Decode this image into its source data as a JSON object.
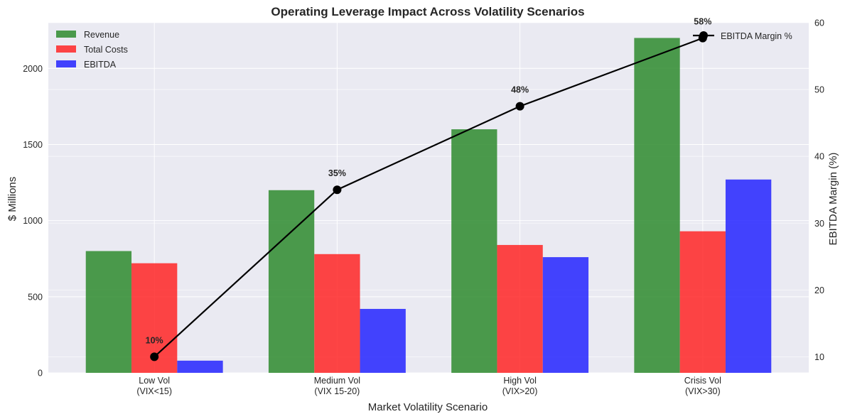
{
  "chart_data": {
    "type": "bar",
    "title": "Operating Leverage Impact Across Volatility Scenarios",
    "xlabel": "Market Volatility Scenario",
    "ylabel": "$ Millions",
    "y2label": "EBITDA Margin (%)",
    "categories": [
      [
        "Low Vol",
        "(VIX<15)"
      ],
      [
        "Medium Vol",
        "(VIX 15-20)"
      ],
      [
        "High Vol",
        "(VIX>20)"
      ],
      [
        "Crisis Vol",
        "(VIX>30)"
      ]
    ],
    "ylim": [
      0,
      2300
    ],
    "yticks": [
      0,
      500,
      1000,
      1500,
      2000
    ],
    "y2lim": [
      7.6,
      60
    ],
    "y2ticks": [
      10,
      20,
      30,
      40,
      50,
      60
    ],
    "grid": true,
    "series": [
      {
        "name": "Revenue",
        "color": "#2e8b2e",
        "values": [
          800,
          1200,
          1600,
          2200
        ]
      },
      {
        "name": "Total Costs",
        "color": "#ff2626",
        "values": [
          720,
          780,
          840,
          930
        ]
      },
      {
        "name": "EBITDA",
        "color": "#2424ff",
        "values": [
          80,
          420,
          760,
          1270
        ]
      }
    ],
    "line_series": {
      "name": "EBITDA Margin %",
      "color": "#000000",
      "axis": "right",
      "values": [
        10,
        35,
        47.5,
        57.7
      ],
      "labels": [
        "10%",
        "35%",
        "48%",
        "58%"
      ]
    },
    "legend_left_position": "upper-left",
    "legend_right_position": "upper-right"
  }
}
